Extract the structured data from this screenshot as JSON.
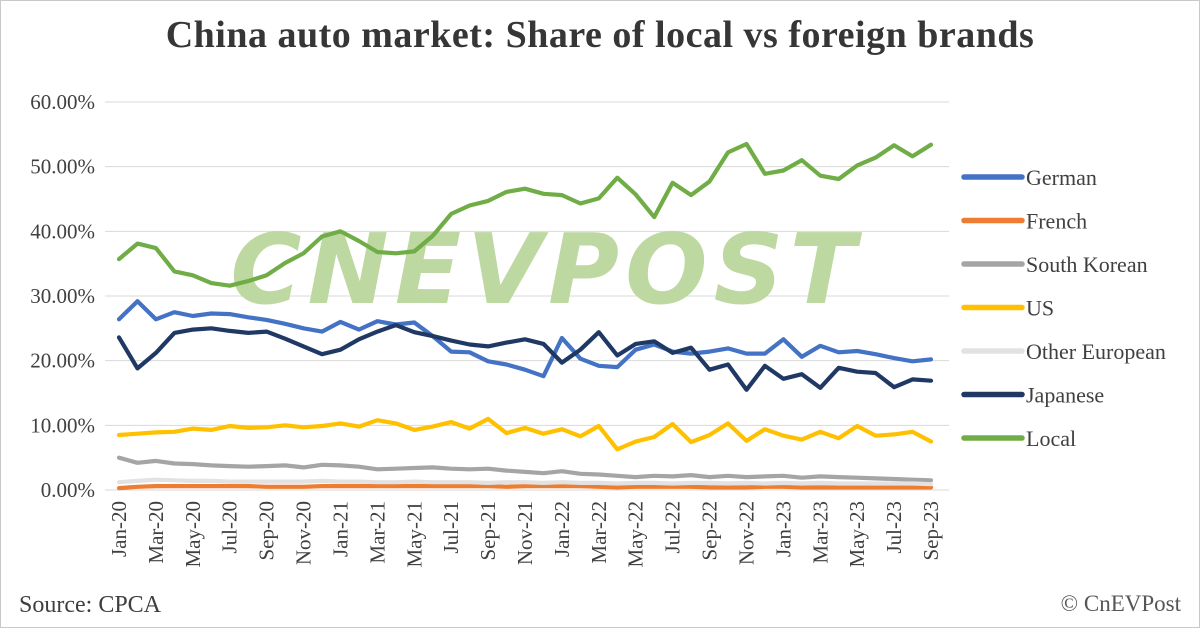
{
  "title": "China auto market: Share of local vs foreign brands",
  "source_label": "Source: CPCA",
  "copyright_label": "© CnEVPost",
  "watermark_text": "CNEVPOST",
  "watermark_color": "#bdd9a1",
  "grid_color": "#d9d9d9",
  "chart_data": {
    "type": "line",
    "title": "China auto market: Share of local vs foreign brands",
    "xlabel": "",
    "ylabel": "",
    "ylim": [
      0,
      60
    ],
    "grid": true,
    "legend_position": "right",
    "y_tick_labels": [
      "0.00%",
      "10.00%",
      "20.00%",
      "30.00%",
      "40.00%",
      "50.00%",
      "60.00%"
    ],
    "x_tick_labels_shown": [
      "Jan-20",
      "Mar-20",
      "May-20",
      "Jul-20",
      "Sep-20",
      "Nov-20",
      "Jan-21",
      "Mar-21",
      "May-21",
      "Jul-21",
      "Sep-21",
      "Nov-21",
      "Jan-22",
      "Mar-22",
      "May-22",
      "Jul-22",
      "Sep-22",
      "Nov-22",
      "Jan-23",
      "Mar-23",
      "May-23",
      "Jul-23",
      "Sep-23"
    ],
    "x": [
      "Jan-20",
      "Feb-20",
      "Mar-20",
      "Apr-20",
      "May-20",
      "Jun-20",
      "Jul-20",
      "Aug-20",
      "Sep-20",
      "Oct-20",
      "Nov-20",
      "Dec-20",
      "Jan-21",
      "Feb-21",
      "Mar-21",
      "Apr-21",
      "May-21",
      "Jun-21",
      "Jul-21",
      "Aug-21",
      "Sep-21",
      "Oct-21",
      "Nov-21",
      "Dec-21",
      "Jan-22",
      "Feb-22",
      "Mar-22",
      "Apr-22",
      "May-22",
      "Jun-22",
      "Jul-22",
      "Aug-22",
      "Sep-22",
      "Oct-22",
      "Nov-22",
      "Dec-22",
      "Jan-23",
      "Feb-23",
      "Mar-23",
      "Apr-23",
      "May-23",
      "Jun-23",
      "Jul-23",
      "Aug-23",
      "Sep-23"
    ],
    "unit": "percent",
    "series": [
      {
        "name": "German",
        "color": "#4472C4",
        "values": [
          26.4,
          29.2,
          26.4,
          27.5,
          26.9,
          27.3,
          27.2,
          26.7,
          26.3,
          25.7,
          25.0,
          24.5,
          26.0,
          24.8,
          26.1,
          25.6,
          25.9,
          23.8,
          21.4,
          21.3,
          19.9,
          19.4,
          18.6,
          17.6,
          23.5,
          20.3,
          19.2,
          19.0,
          21.7,
          22.5,
          21.4,
          21.1,
          21.4,
          21.9,
          21.1,
          21.1,
          23.3,
          20.6,
          22.3,
          21.3,
          21.5,
          21.0,
          20.4,
          19.9,
          20.2
        ]
      },
      {
        "name": "French",
        "color": "#ED7D31",
        "values": [
          0.3,
          0.5,
          0.6,
          0.6,
          0.6,
          0.6,
          0.6,
          0.6,
          0.5,
          0.5,
          0.5,
          0.6,
          0.6,
          0.6,
          0.6,
          0.6,
          0.6,
          0.6,
          0.6,
          0.6,
          0.6,
          0.5,
          0.6,
          0.6,
          0.6,
          0.6,
          0.5,
          0.4,
          0.5,
          0.5,
          0.5,
          0.5,
          0.4,
          0.4,
          0.4,
          0.5,
          0.5,
          0.4,
          0.4,
          0.4,
          0.4,
          0.4,
          0.4,
          0.4,
          0.4
        ]
      },
      {
        "name": "South Korean",
        "color": "#A5A5A5",
        "values": [
          5.0,
          4.2,
          4.5,
          4.1,
          4.0,
          3.8,
          3.7,
          3.6,
          3.7,
          3.8,
          3.5,
          3.9,
          3.8,
          3.6,
          3.2,
          3.3,
          3.4,
          3.5,
          3.3,
          3.2,
          3.3,
          3.0,
          2.8,
          2.6,
          2.9,
          2.5,
          2.4,
          2.2,
          2.0,
          2.2,
          2.1,
          2.3,
          2.0,
          2.2,
          2.0,
          2.1,
          2.2,
          1.9,
          2.1,
          2.0,
          1.9,
          1.8,
          1.7,
          1.6,
          1.5
        ]
      },
      {
        "name": "US",
        "color": "#FFC000",
        "values": [
          8.5,
          8.7,
          8.9,
          9.0,
          9.5,
          9.3,
          9.9,
          9.6,
          9.7,
          10.0,
          9.7,
          9.9,
          10.3,
          9.8,
          10.8,
          10.3,
          9.3,
          9.8,
          10.5,
          9.5,
          11.0,
          8.8,
          9.6,
          8.7,
          9.4,
          8.3,
          9.9,
          6.3,
          7.5,
          8.2,
          10.2,
          7.4,
          8.5,
          10.3,
          7.6,
          9.4,
          8.4,
          7.8,
          9.0,
          8.0,
          9.9,
          8.4,
          8.6,
          9.0,
          7.5
        ]
      },
      {
        "name": "Other European",
        "color": "#E2E2E2",
        "values": [
          1.2,
          1.4,
          1.6,
          1.5,
          1.4,
          1.4,
          1.3,
          1.3,
          1.3,
          1.3,
          1.3,
          1.4,
          1.3,
          1.3,
          1.2,
          1.2,
          1.3,
          1.2,
          1.2,
          1.2,
          1.1,
          1.2,
          1.2,
          1.1,
          1.2,
          1.1,
          1.1,
          1.0,
          1.1,
          1.1,
          1.0,
          1.1,
          1.1,
          1.0,
          1.1,
          1.0,
          1.1,
          1.0,
          1.1,
          1.0,
          1.0,
          1.0,
          1.0,
          1.0,
          0.9
        ]
      },
      {
        "name": "Japanese",
        "color": "#1F3864",
        "values": [
          23.6,
          18.8,
          21.2,
          24.3,
          24.8,
          25.0,
          24.6,
          24.3,
          24.5,
          23.4,
          22.2,
          21.0,
          21.7,
          23.3,
          24.5,
          25.5,
          24.4,
          23.8,
          23.1,
          22.5,
          22.2,
          22.8,
          23.3,
          22.6,
          19.7,
          21.7,
          24.4,
          20.8,
          22.6,
          23.0,
          21.2,
          22.0,
          18.6,
          19.4,
          15.5,
          19.2,
          17.2,
          17.9,
          15.8,
          18.9,
          18.3,
          18.1,
          15.9,
          17.1,
          16.9
        ]
      },
      {
        "name": "Local",
        "color": "#70AD47",
        "values": [
          35.7,
          38.1,
          37.4,
          33.8,
          33.2,
          32.0,
          31.6,
          32.3,
          33.2,
          35.1,
          36.6,
          39.2,
          40.0,
          38.5,
          36.8,
          36.6,
          36.9,
          39.3,
          42.7,
          44.0,
          44.7,
          46.1,
          46.6,
          45.8,
          45.6,
          44.3,
          45.1,
          48.3,
          45.7,
          42.2,
          47.5,
          45.6,
          47.7,
          52.2,
          53.5,
          48.9,
          49.4,
          51.0,
          48.6,
          48.1,
          50.2,
          51.4,
          53.3,
          51.6,
          53.4
        ]
      }
    ]
  }
}
